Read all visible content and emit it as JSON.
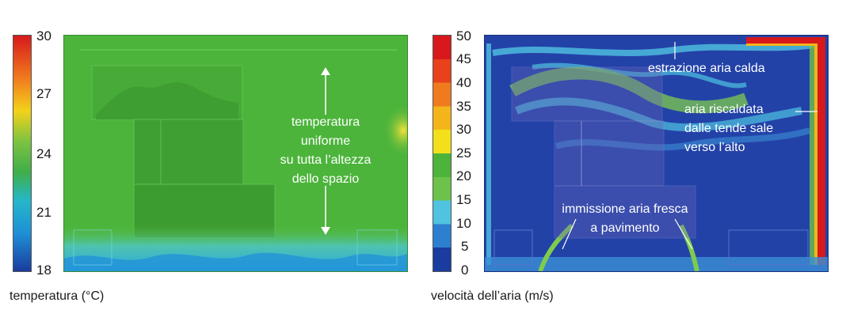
{
  "temperature_panel": {
    "scale_ticks": [
      "30",
      "27",
      "24",
      "21",
      "18"
    ],
    "caption": "temperatura (°C)",
    "annotation_lines": [
      "temperatura",
      "uniforme",
      "su tutta l’altezza",
      "dello spazio"
    ]
  },
  "velocity_panel": {
    "scale_ticks": [
      "50",
      "45",
      "40",
      "35",
      "30",
      "25",
      "20",
      "15",
      "10",
      "5",
      "0"
    ],
    "caption": "velocità dell’aria (m/s)",
    "annotations": {
      "extraction": "estrazione aria calda",
      "heated_line1": "aria riscaldata",
      "heated_line2": "dalle tende sale",
      "heated_line3": "verso l’alto",
      "supply_line1": "immissione aria fresca",
      "supply_line2": "a pavimento"
    }
  },
  "colors": {
    "temp_green": "#4caf3a",
    "velocity_blue": "#1f3fa3"
  }
}
